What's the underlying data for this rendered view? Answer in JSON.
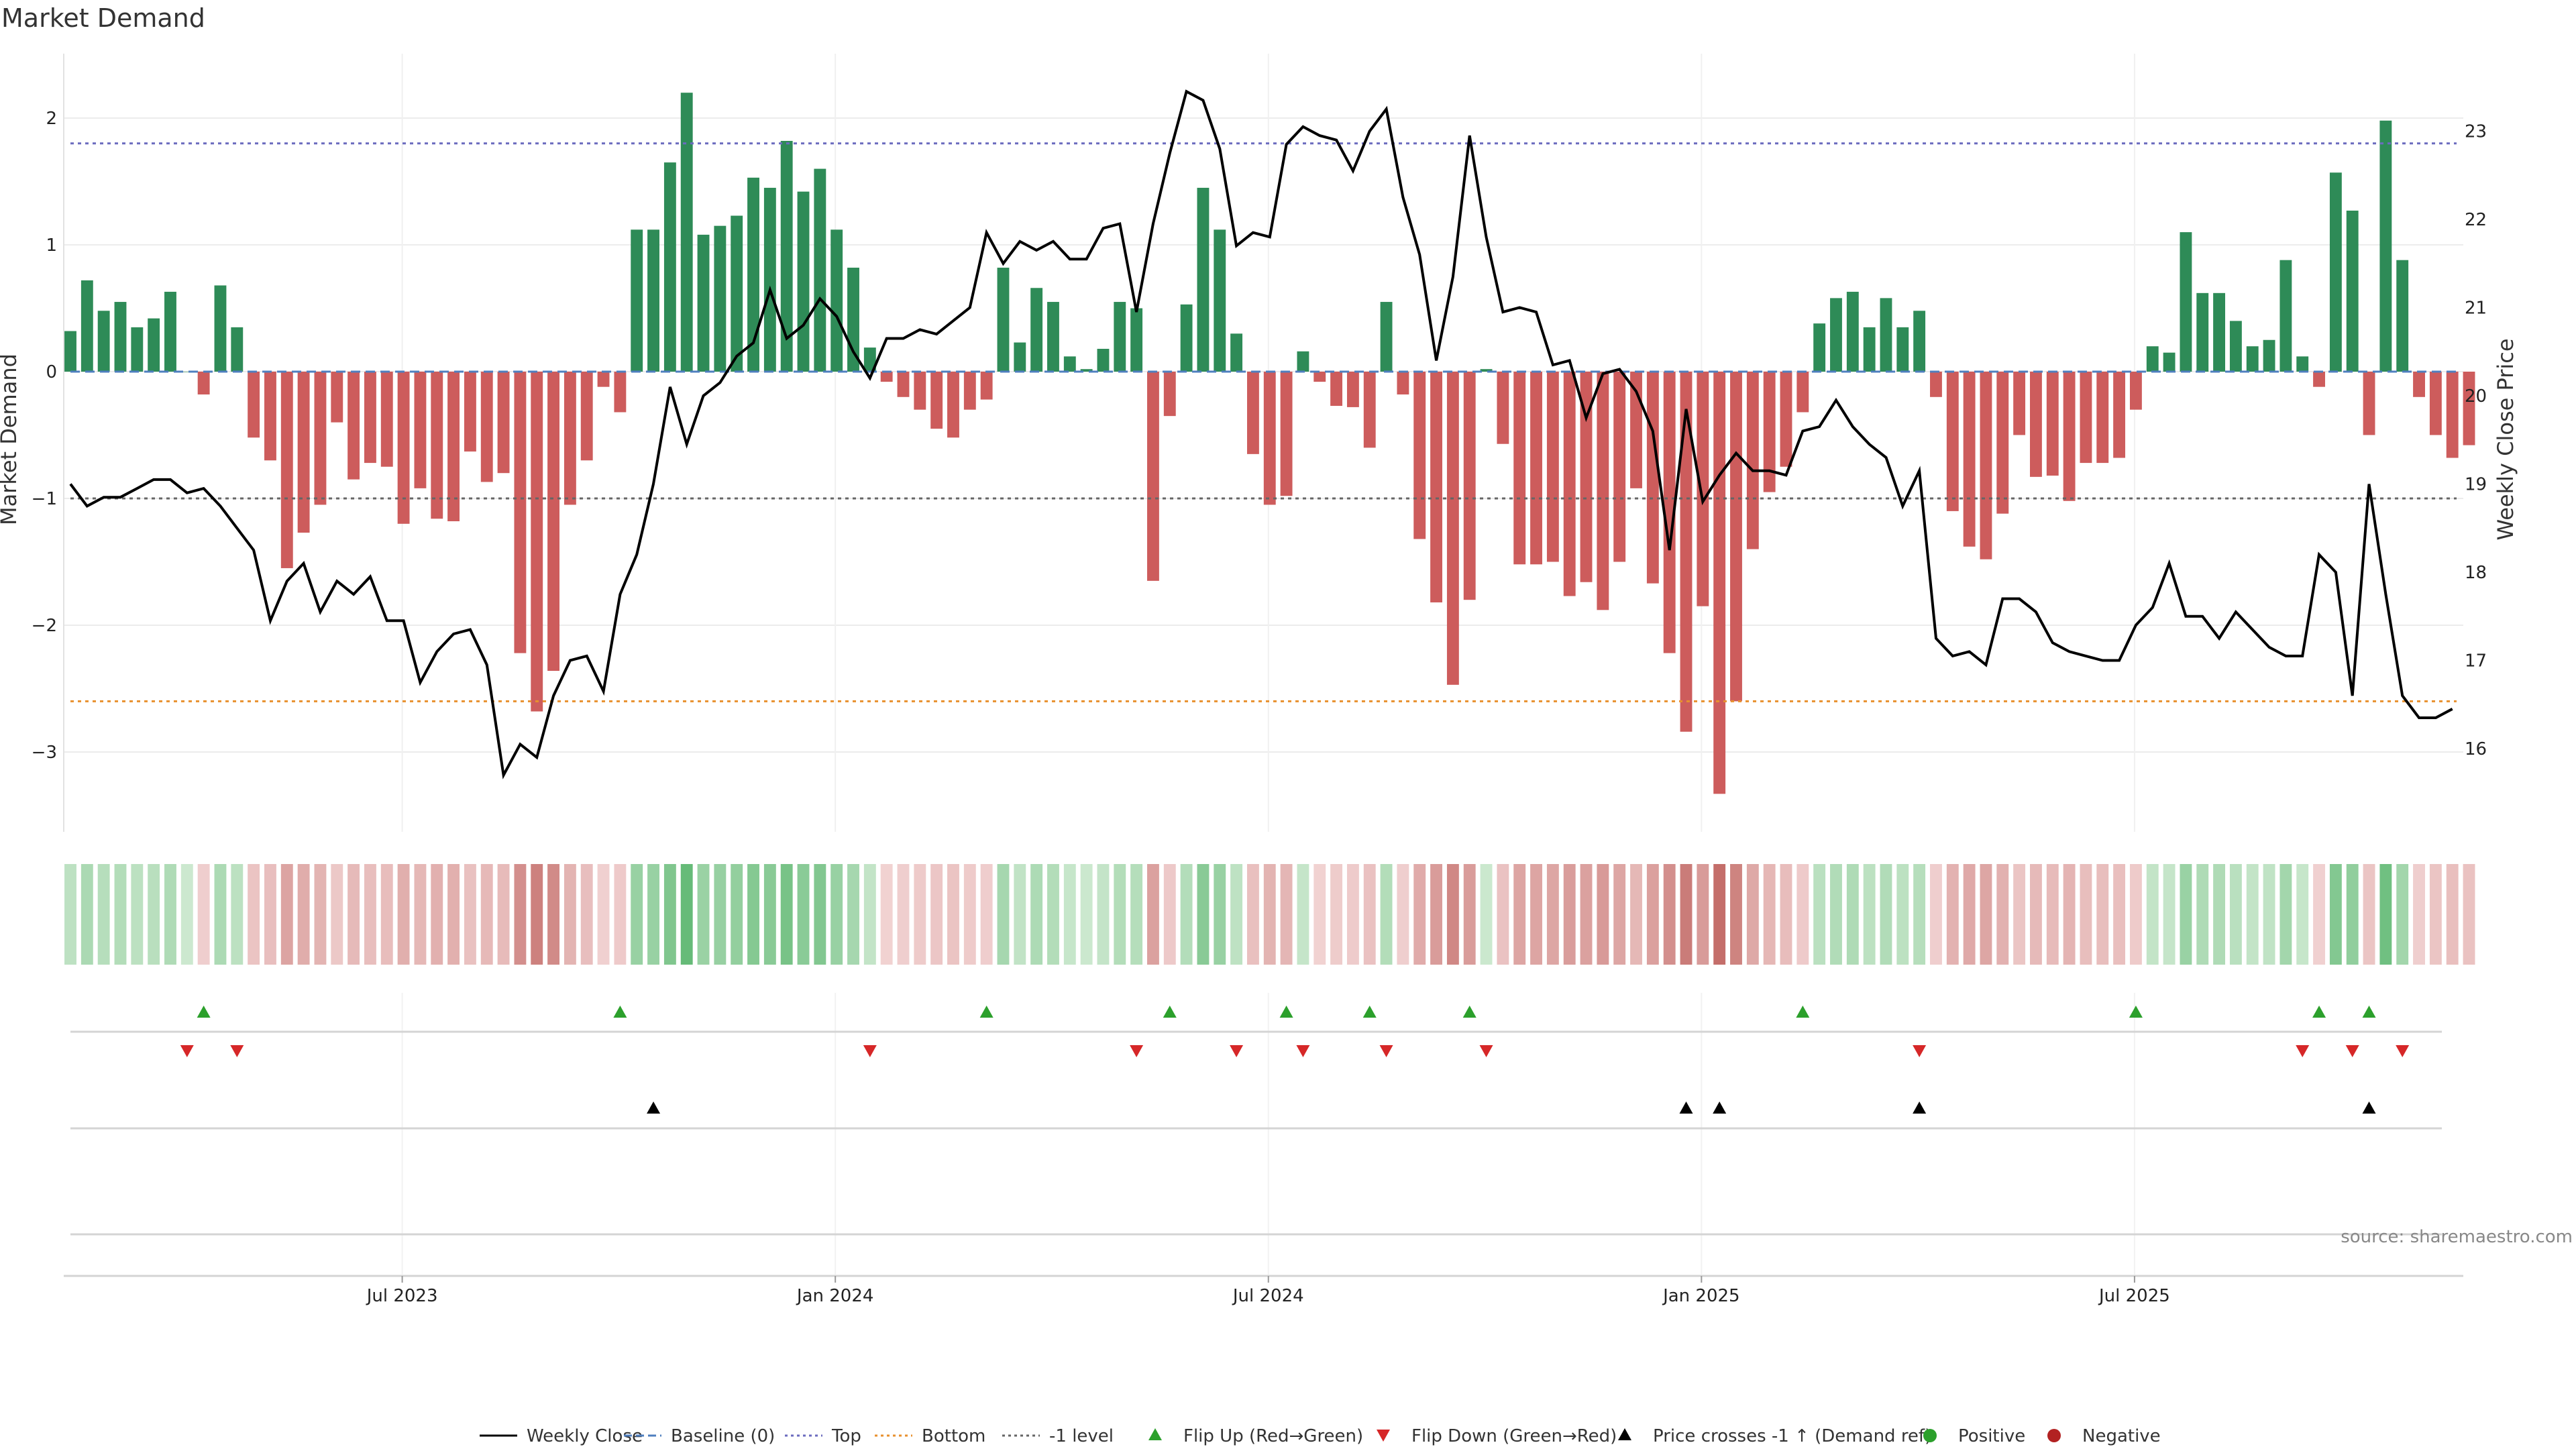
{
  "title": "Market Demand",
  "source": "source: sharemaestro.com",
  "chart_data": {
    "type": "bar",
    "title": "Market Demand",
    "ylabel_left": "Market Demand",
    "ylabel_right": "Weekly Close Price",
    "ylim_left": [
      -3.6,
      2.5
    ],
    "ylim_right": [
      15.2,
      24.0
    ],
    "yticks_left": [
      2,
      1,
      0,
      -1,
      -2,
      -3
    ],
    "yticks_left_labels": [
      "2",
      "1",
      "0",
      "−1",
      "−2",
      "−3"
    ],
    "yticks_right": [
      23,
      22,
      21,
      20,
      19,
      18,
      17,
      16
    ],
    "x_dates": [
      "Jul 2023",
      "Jan 2024",
      "Jul 2024",
      "Jan 2025",
      "Jul 2025"
    ],
    "x_date_week_index": [
      20,
      46,
      72,
      98,
      124
    ],
    "grid": true,
    "reference_lines": [
      {
        "name": "Baseline (0)",
        "value": 0,
        "color": "#4f7fbf",
        "style": "dashed"
      },
      {
        "name": "Top",
        "value": 1.8,
        "color": "#6b6bbf",
        "style": "dotted"
      },
      {
        "name": "Bottom",
        "value": -2.6,
        "color": "#e8912e",
        "style": "dotted"
      },
      {
        "name": "-1 level",
        "value": -1,
        "color": "#666666",
        "style": "dotted"
      }
    ],
    "demand": [
      0.32,
      0.72,
      0.48,
      0.55,
      0.35,
      0.42,
      0.63,
      0.0,
      -0.18,
      0.68,
      0.35,
      -0.52,
      -0.7,
      -1.55,
      -1.27,
      -1.05,
      -0.4,
      -0.85,
      -0.72,
      -0.75,
      -1.2,
      -0.92,
      -1.16,
      -1.18,
      -0.63,
      -0.87,
      -0.8,
      -2.22,
      -2.68,
      -2.36,
      -1.05,
      -0.7,
      -0.12,
      -0.32,
      1.12,
      1.12,
      1.65,
      2.2,
      1.08,
      1.15,
      1.23,
      1.53,
      1.45,
      1.82,
      1.42,
      1.6,
      1.12,
      0.82,
      0.19,
      -0.08,
      -0.2,
      -0.3,
      -0.45,
      -0.52,
      -0.3,
      -0.22,
      0.82,
      0.23,
      0.66,
      0.55,
      0.12,
      0.02,
      0.18,
      0.55,
      0.5,
      -1.65,
      -0.35,
      0.53,
      1.45,
      1.12,
      0.3,
      -0.65,
      -1.05,
      -0.98,
      0.16,
      -0.08,
      -0.27,
      -0.28,
      -0.6,
      0.55,
      -0.18,
      -1.32,
      -1.82,
      -2.47,
      -1.8,
      0.02,
      -0.57,
      -1.52,
      -1.52,
      -1.5,
      -1.77,
      -1.66,
      -1.88,
      -1.5,
      -0.92,
      -1.67,
      -2.22,
      -2.84,
      -1.85,
      -3.33,
      -2.6,
      -1.4,
      -0.95,
      -0.75,
      -0.32,
      0.38,
      0.58,
      0.63,
      0.35,
      0.58,
      0.35,
      0.48,
      -0.2,
      -1.1,
      -1.38,
      -1.48,
      -1.12,
      -0.5,
      -0.83,
      -0.82,
      -1.02,
      -0.72,
      -0.72,
      -0.68,
      -0.3,
      0.2,
      0.15,
      1.1,
      0.62,
      0.62,
      0.4,
      0.2,
      0.25,
      0.88,
      0.12,
      -0.12,
      1.57,
      1.27,
      -0.5,
      1.98,
      0.88,
      -0.2,
      -0.5,
      -0.68,
      -0.58
    ],
    "price": [
      19.0,
      18.75,
      18.85,
      18.85,
      18.95,
      19.05,
      19.05,
      18.9,
      18.95,
      18.75,
      18.5,
      18.25,
      17.45,
      17.9,
      18.1,
      17.55,
      17.9,
      17.75,
      17.95,
      17.45,
      17.45,
      16.75,
      17.1,
      17.3,
      17.35,
      16.95,
      15.7,
      16.05,
      15.9,
      16.6,
      17.0,
      17.05,
      16.65,
      17.75,
      18.2,
      19.0,
      20.1,
      19.45,
      20.0,
      20.15,
      20.45,
      20.6,
      21.2,
      20.65,
      20.8,
      21.1,
      20.9,
      20.5,
      20.2,
      20.65,
      20.65,
      20.75,
      20.7,
      20.85,
      21.0,
      21.85,
      21.5,
      21.75,
      21.65,
      21.75,
      21.55,
      21.55,
      21.9,
      21.95,
      20.95,
      21.95,
      22.75,
      23.45,
      23.35,
      22.8,
      21.7,
      21.85,
      21.8,
      22.85,
      23.05,
      22.95,
      22.9,
      22.55,
      23.0,
      23.25,
      22.25,
      21.6,
      20.4,
      21.35,
      22.95,
      21.8,
      20.95,
      21.0,
      20.95,
      20.35,
      20.4,
      19.75,
      20.25,
      20.3,
      20.05,
      19.6,
      18.25,
      19.85,
      18.8,
      19.1,
      19.35,
      19.15,
      19.15,
      19.1,
      19.6,
      19.65,
      19.95,
      19.65,
      19.45,
      19.3,
      18.75,
      19.15,
      17.25,
      17.05,
      17.1,
      16.95,
      17.7,
      17.7,
      17.55,
      17.2,
      17.1,
      17.05,
      17.0,
      17.0,
      17.4,
      17.6,
      18.1,
      17.5,
      17.5,
      17.25,
      17.55,
      17.35,
      17.15,
      17.05,
      17.05,
      18.2,
      18.0,
      16.6,
      19.0,
      17.75,
      16.6,
      16.35,
      16.35,
      16.45
    ],
    "flip_up_weeks": [
      8,
      33,
      55,
      66,
      73,
      78,
      84,
      104,
      124,
      135,
      138
    ],
    "flip_down_weeks": [
      7,
      10,
      48,
      64,
      70,
      74,
      79,
      85,
      111,
      134,
      137,
      140
    ],
    "price_cross_weeks": [
      35,
      97,
      99,
      111,
      138
    ],
    "legend": [
      {
        "label": "Weekly Close",
        "kind": "line-solid",
        "color": "#000000"
      },
      {
        "label": "Baseline (0)",
        "kind": "line-dashed",
        "color": "#4f7fbf"
      },
      {
        "label": "Top",
        "kind": "line-dotted",
        "color": "#6b6bbf"
      },
      {
        "label": "Bottom",
        "kind": "line-dotted",
        "color": "#e8912e"
      },
      {
        "label": "-1 level",
        "kind": "line-dotted",
        "color": "#666666"
      },
      {
        "label": "Flip Up (Red→Green)",
        "kind": "triangle-up",
        "color": "#2ca02c"
      },
      {
        "label": "Flip Down (Green→Red)",
        "kind": "triangle-down",
        "color": "#d62728"
      },
      {
        "label": "Price crosses -1 ↑ (Demand ref)",
        "kind": "triangle-up",
        "color": "#000000"
      },
      {
        "label": "Positive",
        "kind": "dot",
        "color": "#2ca02c"
      },
      {
        "label": "Negative",
        "kind": "dot",
        "color": "#b22222"
      }
    ],
    "legend_position": "bottom-center",
    "colors": {
      "positive_bar": "#2e8b57",
      "negative_bar": "#cd5c5c",
      "price_line": "#000000",
      "flip_up": "#2ca02c",
      "flip_down": "#d62728",
      "cross_marker": "#000000"
    }
  }
}
